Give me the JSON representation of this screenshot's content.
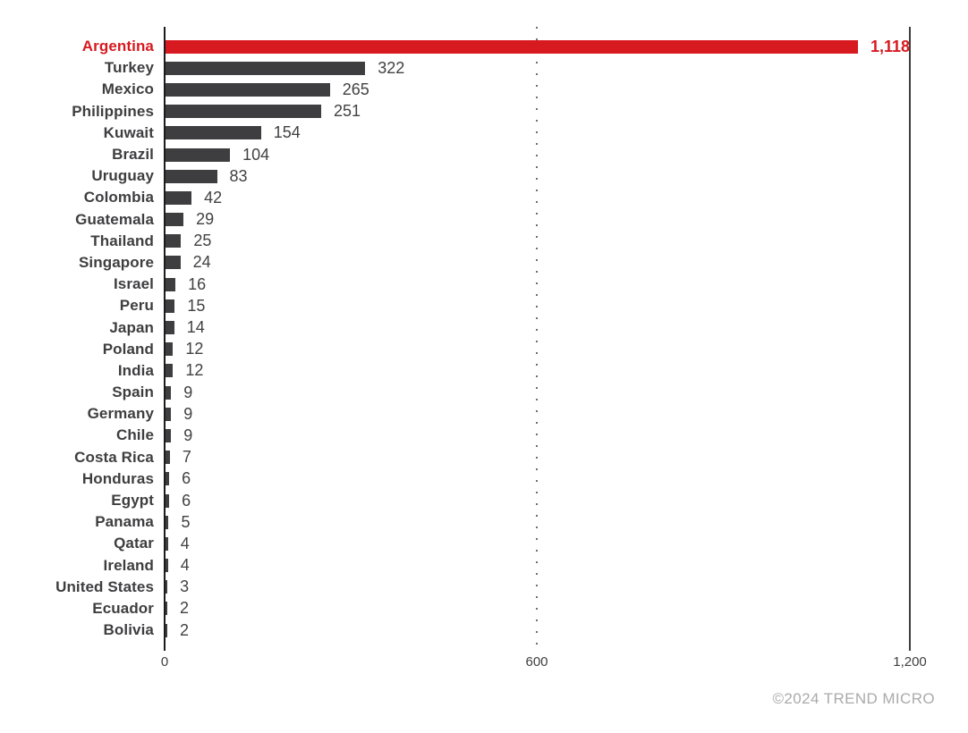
{
  "chart_data": {
    "type": "bar",
    "orientation": "horizontal",
    "title": "",
    "xlabel": "",
    "ylabel": "",
    "xlim": [
      0,
      1200
    ],
    "x_ticks": [
      "0",
      "600",
      "1,200"
    ],
    "grid": "dotted vertical gridline at 600; solid axis lines at 0 and 1200",
    "legend": "none",
    "bar_color": "#3e3e40",
    "highlight_color": "#d71920",
    "highlight_category": "Argentina",
    "categories": [
      "Argentina",
      "Turkey",
      "Mexico",
      "Philippines",
      "Kuwait",
      "Brazil",
      "Uruguay",
      "Colombia",
      "Guatemala",
      "Thailand",
      "Singapore",
      "Israel",
      "Peru",
      "Japan",
      "Poland",
      "India",
      "Spain",
      "Germany",
      "Chile",
      "Costa Rica",
      "Honduras",
      "Egypt",
      "Panama",
      "Qatar",
      "Ireland",
      "United States",
      "Ecuador",
      "Bolivia"
    ],
    "values": [
      1118,
      322,
      265,
      251,
      154,
      104,
      83,
      42,
      29,
      25,
      24,
      16,
      15,
      14,
      12,
      12,
      9,
      9,
      9,
      7,
      6,
      6,
      5,
      4,
      4,
      3,
      2,
      2
    ],
    "value_labels": [
      "1,118",
      "322",
      "265",
      "251",
      "154",
      "104",
      "83",
      "42",
      "29",
      "25",
      "24",
      "16",
      "15",
      "14",
      "12",
      "12",
      "9",
      "9",
      "9",
      "7",
      "6",
      "6",
      "5",
      "4",
      "4",
      "3",
      "2",
      "2"
    ]
  },
  "footer": {
    "copyright": "©2024 TREND MICRO"
  }
}
